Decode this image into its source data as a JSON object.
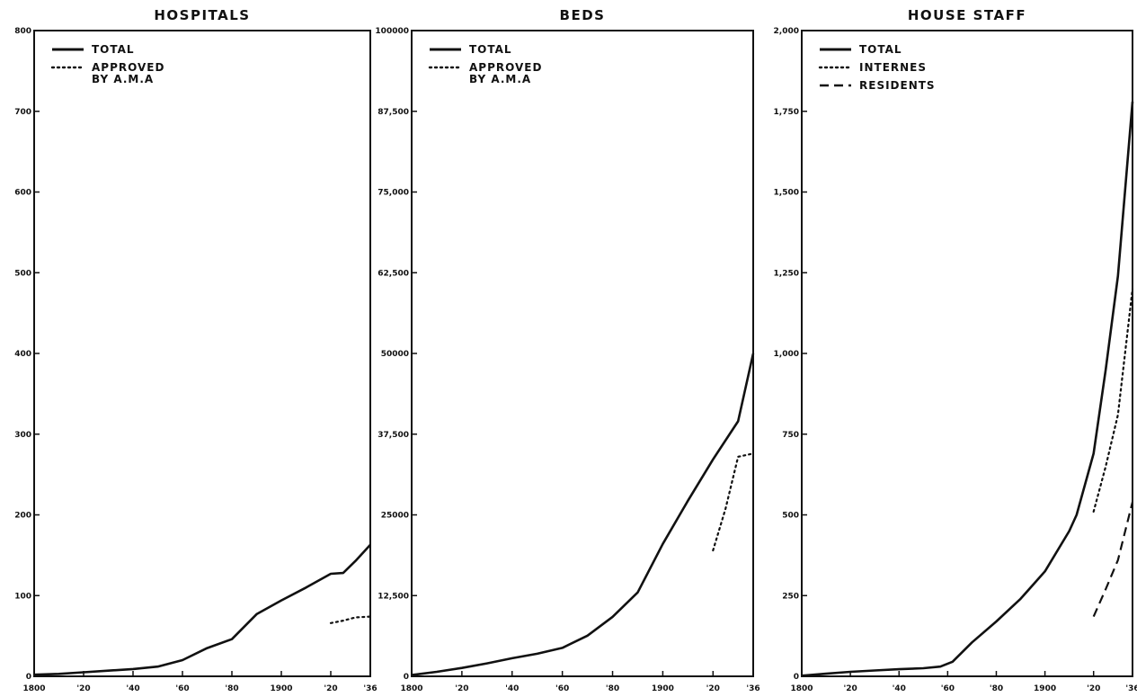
{
  "chart_data": [
    {
      "type": "line",
      "title": "HOSPITALS",
      "xlabel": "",
      "ylabel": "",
      "xlim": [
        1800,
        1936
      ],
      "ylim": [
        0,
        800
      ],
      "x_ticks": [
        1800,
        1820,
        1840,
        1860,
        1880,
        1900,
        1920,
        1936
      ],
      "x_tick_labels": [
        "1800",
        "'20",
        "'40",
        "'60",
        "'80",
        "1900",
        "'20",
        "'36"
      ],
      "y_ticks": [
        0,
        100,
        200,
        300,
        400,
        500,
        600,
        700,
        800
      ],
      "y_tick_labels": [
        "0",
        "100",
        "200",
        "300",
        "400",
        "500",
        "600",
        "700",
        "800"
      ],
      "legend_position": "top-left",
      "grid": false,
      "series": [
        {
          "name": "TOTAL",
          "style": "solid",
          "x": [
            1800,
            1810,
            1820,
            1830,
            1840,
            1850,
            1860,
            1870,
            1880,
            1890,
            1900,
            1910,
            1920,
            1925,
            1930,
            1936
          ],
          "y": [
            2,
            3,
            5,
            7,
            9,
            12,
            20,
            35,
            46,
            77,
            94,
            110,
            127,
            128,
            143,
            163
          ]
        },
        {
          "name": "APPROVED\nBY A.M.A",
          "style": "dotted",
          "x": [
            1920,
            1925,
            1930,
            1936
          ],
          "y": [
            66,
            69,
            73,
            74
          ]
        }
      ]
    },
    {
      "type": "line",
      "title": "BEDS",
      "xlabel": "",
      "ylabel": "",
      "xlim": [
        1800,
        1936
      ],
      "ylim": [
        0,
        100000
      ],
      "x_ticks": [
        1800,
        1820,
        1840,
        1860,
        1880,
        1900,
        1920,
        1936
      ],
      "x_tick_labels": [
        "1800",
        "'20",
        "'40",
        "'60",
        "'80",
        "1900",
        "'20",
        "'36"
      ],
      "y_ticks": [
        0,
        12500,
        25000,
        37500,
        50000,
        62500,
        75000,
        87500,
        100000
      ],
      "y_tick_labels": [
        "0",
        "12,500",
        "25000",
        "37,500",
        "50000",
        "62,500",
        "75,000",
        "87,500",
        "100000"
      ],
      "legend_position": "top-left",
      "grid": false,
      "series": [
        {
          "name": "TOTAL",
          "style": "solid",
          "x": [
            1800,
            1810,
            1820,
            1830,
            1840,
            1850,
            1860,
            1870,
            1880,
            1890,
            1900,
            1910,
            1920,
            1930,
            1936
          ],
          "y": [
            200,
            700,
            1300,
            2000,
            2800,
            3500,
            4400,
            6300,
            9200,
            13000,
            20500,
            27200,
            33600,
            39500,
            50000
          ]
        },
        {
          "name": "APPROVED\nBY A.M.A",
          "style": "dotted",
          "x": [
            1920,
            1925,
            1930,
            1936
          ],
          "y": [
            19500,
            26000,
            34000,
            34500
          ]
        }
      ]
    },
    {
      "type": "line",
      "title": "HOUSE STAFF",
      "xlabel": "",
      "ylabel": "",
      "xlim": [
        1800,
        1936
      ],
      "ylim": [
        0,
        2000
      ],
      "x_ticks": [
        1800,
        1820,
        1840,
        1860,
        1880,
        1900,
        1920,
        1936
      ],
      "x_tick_labels": [
        "1800",
        "'20",
        "'40",
        "'60",
        "'80",
        "1900",
        "'20",
        "'36"
      ],
      "y_ticks": [
        0,
        250,
        500,
        750,
        1000,
        1250,
        1500,
        1750,
        2000
      ],
      "y_tick_labels": [
        "0",
        "250",
        "500",
        "750",
        "1,000",
        "1,250",
        "1,500",
        "1,750",
        "2,000"
      ],
      "legend_position": "top-left",
      "grid": false,
      "series": [
        {
          "name": "TOTAL",
          "style": "solid",
          "x": [
            1800,
            1810,
            1820,
            1830,
            1840,
            1850,
            1857,
            1862,
            1870,
            1880,
            1890,
            1900,
            1910,
            1913,
            1920,
            1925,
            1930,
            1936
          ],
          "y": [
            2,
            8,
            14,
            18,
            22,
            25,
            30,
            45,
            105,
            170,
            240,
            325,
            450,
            500,
            690,
            950,
            1240,
            1780
          ]
        },
        {
          "name": "INTERNES",
          "style": "dotted",
          "x": [
            1920,
            1925,
            1930,
            1936
          ],
          "y": [
            510,
            650,
            810,
            1200
          ]
        },
        {
          "name": "RESIDENTS",
          "style": "dashed",
          "x": [
            1920,
            1925,
            1930,
            1936
          ],
          "y": [
            185,
            270,
            360,
            540
          ]
        }
      ]
    }
  ]
}
